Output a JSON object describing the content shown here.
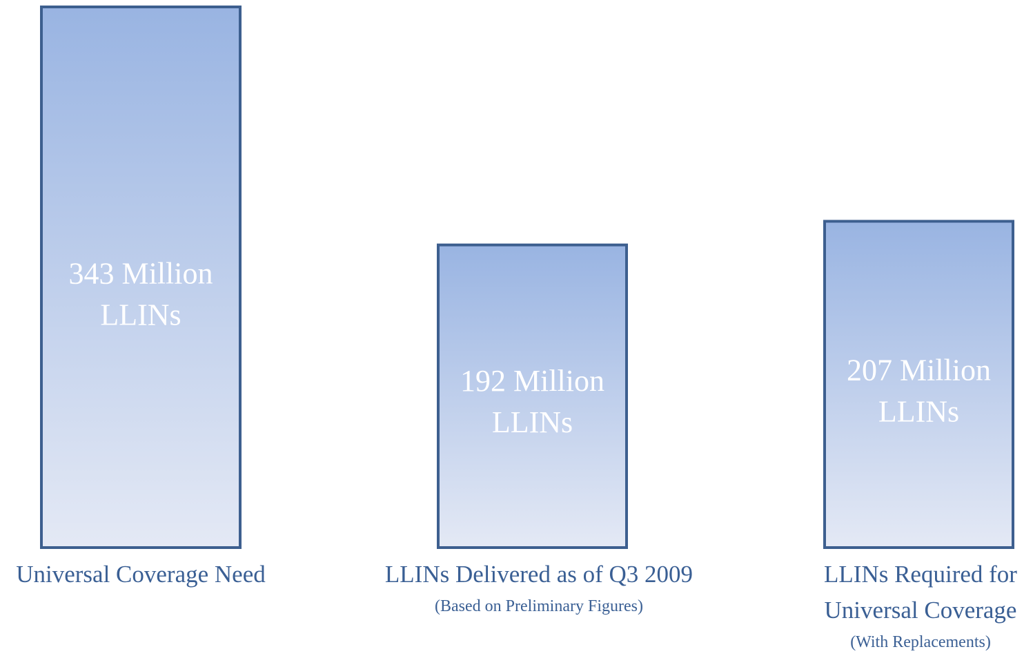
{
  "chart_data": {
    "type": "bar",
    "categories": [
      "Universal Coverage Need",
      "LLINs Delivered as of Q3 2009",
      "LLINs Required for Universal Coverage"
    ],
    "category_lines": [
      [
        "Universal Coverage Need"
      ],
      [
        "LLINs Delivered as of Q3 2009"
      ],
      [
        "LLINs Required for",
        "Universal Coverage"
      ]
    ],
    "subtitles": [
      "",
      "(Based on Preliminary Figures)",
      "(With Replacements)"
    ],
    "values": [
      343,
      192,
      207
    ],
    "value_labels": [
      [
        "343 Million",
        "LLINs"
      ],
      [
        "192 Million",
        "LLINs"
      ],
      [
        "207 Million",
        "LLINs"
      ]
    ],
    "title": "",
    "xlabel": "",
    "ylabel": "",
    "ylim": [
      0,
      343
    ],
    "grid": false,
    "legend": "none",
    "colors": {
      "bar_fill_top": "#99b4e2",
      "bar_fill_bottom": "#e4e9f5",
      "bar_stroke": "#3d5f8f",
      "bar_label": "#ffffff",
      "category_label": "#3a5f94",
      "subtitle": "#3a5f94"
    }
  }
}
